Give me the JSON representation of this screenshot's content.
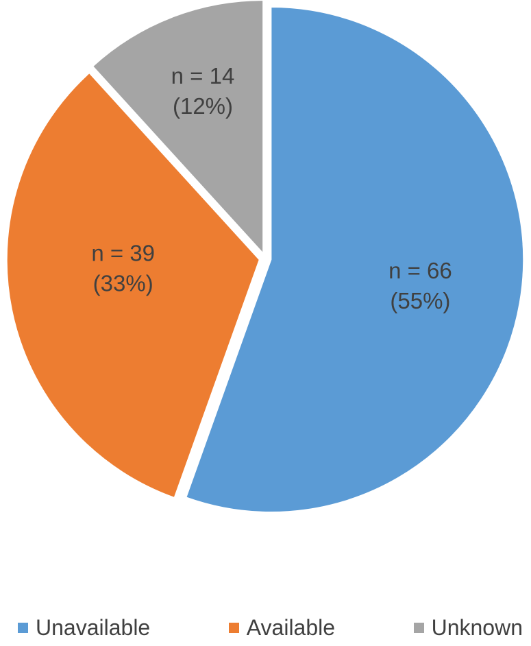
{
  "chart_data": {
    "type": "pie",
    "title": "",
    "start_angle_deg": 0,
    "direction": "clockwise",
    "legend_position": "bottom",
    "text_color": "#404040",
    "background_color": "#ffffff",
    "total": 119,
    "slices": [
      {
        "label": "Unavailable",
        "value": 66,
        "percent": 55,
        "label_lines": [
          "n = 66",
          "(55%)"
        ],
        "color": "#5B9BD5"
      },
      {
        "label": "Available",
        "value": 39,
        "percent": 33,
        "label_lines": [
          "n = 39",
          "(33%)"
        ],
        "color": "#ED7D31"
      },
      {
        "label": "Unknown",
        "value": 14,
        "percent": 12,
        "label_lines": [
          "n = 14",
          "(12%)"
        ],
        "color": "#A5A5A5"
      }
    ]
  }
}
